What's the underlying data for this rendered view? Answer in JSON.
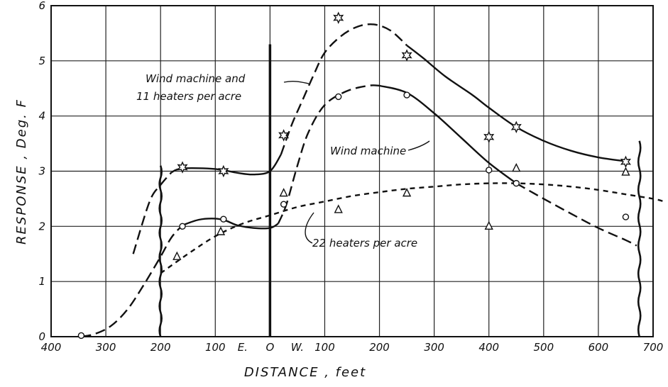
{
  "chart_data": {
    "type": "scatter",
    "title": "",
    "xlabel": "DISTANCE , feet",
    "ylabel": "RESPONSE , Deg. F",
    "grid": true,
    "x_ticks": [
      {
        "value": -400,
        "label": "400"
      },
      {
        "value": -300,
        "label": "300"
      },
      {
        "value": -200,
        "label": "200"
      },
      {
        "value": -100,
        "label": "100"
      },
      {
        "value": -50,
        "label": "E."
      },
      {
        "value": 0,
        "label": "O"
      },
      {
        "value": 50,
        "label": "W."
      },
      {
        "value": 100,
        "label": "100"
      },
      {
        "value": 200,
        "label": "200"
      },
      {
        "value": 300,
        "label": "300"
      },
      {
        "value": 400,
        "label": "400"
      },
      {
        "value": 500,
        "label": "500"
      },
      {
        "value": 600,
        "label": "600"
      },
      {
        "value": 700,
        "label": "700"
      }
    ],
    "y_ticks": [
      {
        "value": 0,
        "label": "0"
      },
      {
        "value": 1,
        "label": "1"
      },
      {
        "value": 2,
        "label": "2"
      },
      {
        "value": 3,
        "label": "3"
      },
      {
        "value": 4,
        "label": "4"
      },
      {
        "value": 5,
        "label": "5"
      },
      {
        "value": 6,
        "label": "6"
      }
    ],
    "xlim": [
      -400,
      700
    ],
    "ylim": [
      0,
      6
    ],
    "series": [
      {
        "name": "Wind machine and 11 heaters per acre",
        "marker": "star",
        "line_style": "mixed",
        "points": [
          {
            "x": -160,
            "y": 3.07
          },
          {
            "x": -85,
            "y": 3.0
          },
          {
            "x": 25,
            "y": 3.65
          },
          {
            "x": 125,
            "y": 5.78
          },
          {
            "x": 250,
            "y": 5.1
          },
          {
            "x": 400,
            "y": 3.62
          },
          {
            "x": 450,
            "y": 3.8
          },
          {
            "x": 650,
            "y": 3.17
          }
        ],
        "curve": [
          [
            -250,
            1.5
          ],
          [
            -220,
            2.45
          ],
          [
            -200,
            2.75
          ],
          [
            -180,
            2.98
          ],
          [
            -160,
            3.05
          ],
          [
            -100,
            3.04
          ],
          [
            -60,
            2.97
          ],
          [
            -30,
            2.94
          ],
          [
            0,
            3.0
          ],
          [
            20,
            3.3
          ],
          [
            40,
            3.85
          ],
          [
            60,
            4.3
          ],
          [
            80,
            4.75
          ],
          [
            100,
            5.15
          ],
          [
            130,
            5.45
          ],
          [
            160,
            5.62
          ],
          [
            190,
            5.66
          ],
          [
            220,
            5.55
          ],
          [
            250,
            5.28
          ],
          [
            280,
            5.05
          ],
          [
            320,
            4.72
          ],
          [
            370,
            4.38
          ],
          [
            400,
            4.15
          ],
          [
            450,
            3.8
          ],
          [
            500,
            3.55
          ],
          [
            550,
            3.37
          ],
          [
            600,
            3.25
          ],
          [
            650,
            3.18
          ]
        ]
      },
      {
        "name": "Wind machine",
        "marker": "circle",
        "line_style": "mixed",
        "points": [
          {
            "x": -345,
            "y": 0.02
          },
          {
            "x": -160,
            "y": 2.0
          },
          {
            "x": -85,
            "y": 2.13
          },
          {
            "x": 25,
            "y": 2.4
          },
          {
            "x": 125,
            "y": 4.35
          },
          {
            "x": 250,
            "y": 4.38
          },
          {
            "x": 400,
            "y": 3.02
          },
          {
            "x": 450,
            "y": 2.78
          },
          {
            "x": 650,
            "y": 2.17
          }
        ],
        "curve": [
          [
            -345,
            0.0
          ],
          [
            -320,
            0.05
          ],
          [
            -290,
            0.2
          ],
          [
            -260,
            0.5
          ],
          [
            -230,
            0.95
          ],
          [
            -200,
            1.45
          ],
          [
            -180,
            1.8
          ],
          [
            -160,
            2.02
          ],
          [
            -130,
            2.12
          ],
          [
            -100,
            2.14
          ],
          [
            -80,
            2.1
          ],
          [
            -60,
            2.02
          ],
          [
            -30,
            1.97
          ],
          [
            0,
            1.97
          ],
          [
            15,
            2.05
          ],
          [
            30,
            2.4
          ],
          [
            50,
            3.1
          ],
          [
            70,
            3.7
          ],
          [
            100,
            4.2
          ],
          [
            140,
            4.45
          ],
          [
            180,
            4.55
          ],
          [
            200,
            4.55
          ],
          [
            250,
            4.42
          ],
          [
            300,
            4.05
          ],
          [
            350,
            3.6
          ],
          [
            400,
            3.15
          ],
          [
            450,
            2.78
          ],
          [
            500,
            2.5
          ],
          [
            550,
            2.23
          ],
          [
            600,
            1.97
          ],
          [
            650,
            1.75
          ],
          [
            670,
            1.65
          ]
        ]
      },
      {
        "name": "22 heaters per acre",
        "marker": "triangle",
        "line_style": "dashed",
        "points": [
          {
            "x": -170,
            "y": 1.45
          },
          {
            "x": -90,
            "y": 1.9
          },
          {
            "x": 25,
            "y": 2.6
          },
          {
            "x": 125,
            "y": 2.3
          },
          {
            "x": 250,
            "y": 2.6
          },
          {
            "x": 400,
            "y": 2.0
          },
          {
            "x": 450,
            "y": 3.05
          },
          {
            "x": 650,
            "y": 2.98
          }
        ],
        "curve": [
          [
            -200,
            1.15
          ],
          [
            -150,
            1.5
          ],
          [
            -100,
            1.82
          ],
          [
            -50,
            2.05
          ],
          [
            0,
            2.2
          ],
          [
            50,
            2.35
          ],
          [
            100,
            2.45
          ],
          [
            150,
            2.55
          ],
          [
            200,
            2.62
          ],
          [
            250,
            2.68
          ],
          [
            300,
            2.72
          ],
          [
            350,
            2.76
          ],
          [
            400,
            2.78
          ],
          [
            450,
            2.78
          ],
          [
            500,
            2.76
          ],
          [
            550,
            2.72
          ],
          [
            600,
            2.66
          ],
          [
            650,
            2.58
          ],
          [
            700,
            2.5
          ],
          [
            720,
            2.45
          ]
        ]
      }
    ],
    "annotations": [
      {
        "text": "Wind machine and",
        "series": 0
      },
      {
        "text": "11 heaters per acre",
        "series": 0
      },
      {
        "text": "Wind machine",
        "series": 1
      },
      {
        "text": "22 heaters per acre",
        "series": 2
      }
    ]
  }
}
